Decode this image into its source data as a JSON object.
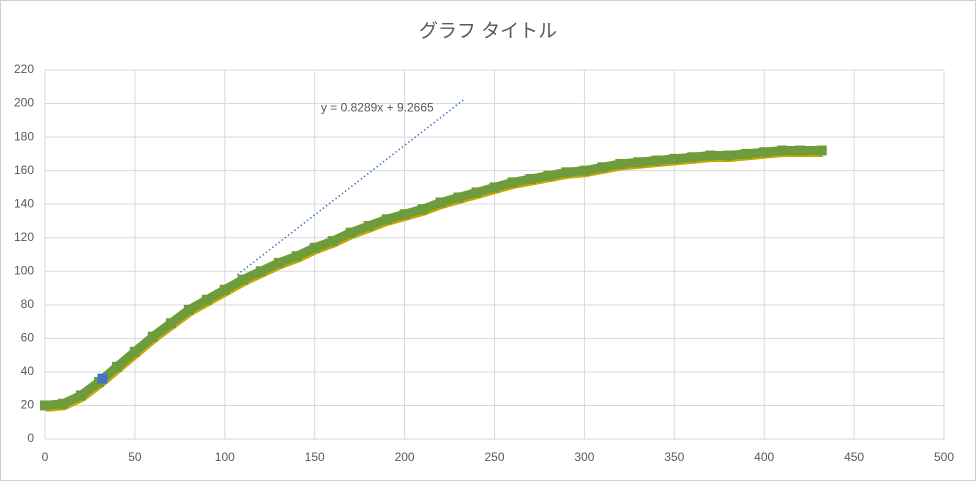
{
  "chart_data": {
    "type": "scatter",
    "title": "グラフ タイトル",
    "series": [
      {
        "color": "#6e9c3c",
        "x": [
          0,
          10,
          20,
          30,
          40,
          50,
          60,
          70,
          80,
          90,
          100,
          110,
          120,
          130,
          140,
          150,
          160,
          170,
          180,
          190,
          200,
          210,
          220,
          230,
          240,
          250,
          260,
          270,
          280,
          290,
          300,
          310,
          320,
          330,
          340,
          350,
          360,
          370,
          380,
          390,
          400,
          410,
          420,
          432
        ],
        "values": [
          20,
          21,
          26,
          34,
          43,
          52,
          61,
          69,
          77,
          83,
          89,
          95,
          100,
          105,
          109,
          114,
          118,
          123,
          127,
          131,
          134,
          137,
          141,
          144,
          147,
          150,
          153,
          155,
          157,
          159,
          160,
          162,
          164,
          165,
          166,
          167,
          168,
          169,
          169,
          170,
          171,
          172,
          172,
          172
        ]
      },
      {
        "color": "#4472c4",
        "x": [
          32
        ],
        "values": [
          36
        ]
      }
    ],
    "trendline": {
      "color": "#4472c4",
      "x": [
        107,
        233
      ],
      "values": [
        97.96,
        202.4
      ],
      "label": "y = 0.8289x + 9.2665"
    },
    "xlim": [
      0,
      500
    ],
    "xticks": [
      0,
      50,
      100,
      150,
      200,
      250,
      300,
      350,
      400,
      450,
      500
    ],
    "ylim": [
      0,
      220
    ],
    "yticks": [
      0,
      20,
      40,
      60,
      80,
      100,
      120,
      140,
      160,
      180,
      200,
      220
    ],
    "grid": true
  }
}
